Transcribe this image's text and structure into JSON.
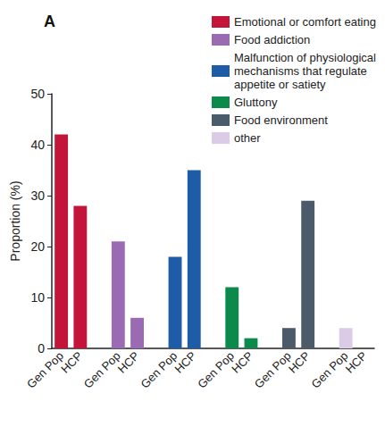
{
  "chart_data": {
    "type": "bar",
    "title": "A",
    "y_label": "Proportion (%)",
    "categories": [
      "Gen Pop",
      "HCP",
      null,
      "Gen Pop",
      "HCP",
      null,
      "Gen Pop",
      "HCP",
      null,
      "Gen Pop",
      "HCP",
      null,
      "Gen Pop",
      "HCP",
      null,
      "Gen Pop",
      "HCP"
    ],
    "series": [
      {
        "name": "Emotional or comfort eating",
        "color": "#c4143a",
        "values": [
          42,
          28,
          null,
          null,
          null,
          null,
          null,
          null,
          null,
          null,
          null,
          null,
          null,
          null,
          null,
          null,
          null
        ]
      },
      {
        "name": "Food addiction",
        "color": "#9a6bb2",
        "values": [
          null,
          null,
          null,
          21,
          6,
          null,
          null,
          null,
          null,
          null,
          null,
          null,
          null,
          null,
          null,
          null,
          null
        ]
      },
      {
        "name": "Malfunction of physiological mechanisms that regulate appetite or satiety",
        "color": "#1f5ca8",
        "values": [
          null,
          null,
          null,
          null,
          null,
          null,
          18,
          35,
          null,
          null,
          null,
          null,
          null,
          null,
          null,
          null,
          null
        ]
      },
      {
        "name": "Gluttony",
        "color": "#0b8a4c",
        "values": [
          null,
          null,
          null,
          null,
          null,
          null,
          null,
          null,
          null,
          12,
          2,
          null,
          null,
          null,
          null,
          null,
          null
        ]
      },
      {
        "name": "Food environment",
        "color": "#4c5b69",
        "values": [
          null,
          null,
          null,
          null,
          null,
          null,
          null,
          null,
          null,
          null,
          null,
          null,
          4,
          29,
          null,
          null,
          null
        ]
      },
      {
        "name": "other",
        "color": "#dccbe6",
        "values": [
          null,
          null,
          null,
          null,
          null,
          null,
          null,
          null,
          null,
          null,
          null,
          null,
          null,
          null,
          null,
          4,
          0
        ]
      }
    ],
    "ylim": [
      0,
      50
    ],
    "yticks": [
      0,
      10,
      20,
      30,
      40,
      50
    ],
    "grid": false,
    "legend": "top-right"
  }
}
